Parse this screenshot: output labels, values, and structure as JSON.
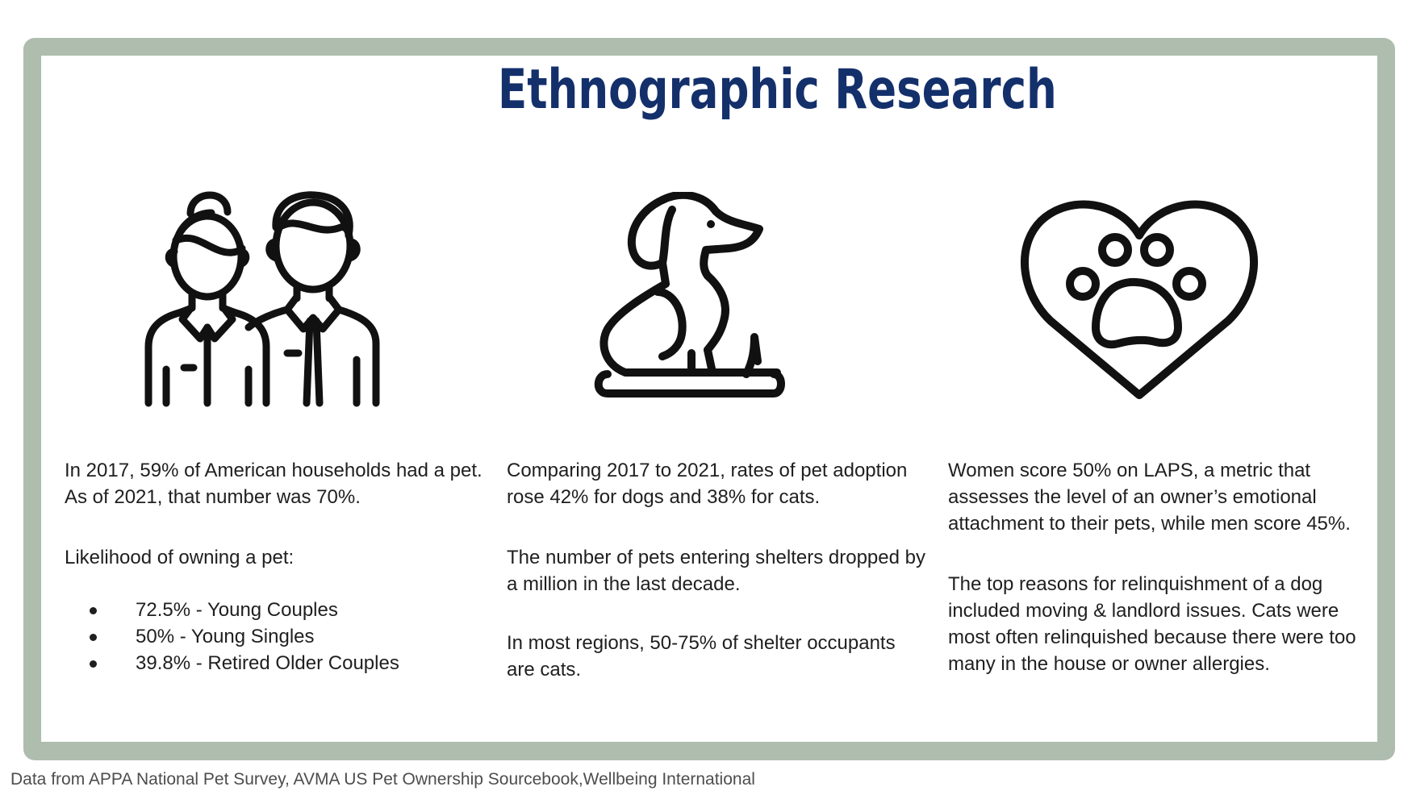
{
  "title": "Ethnographic Research",
  "icons": {
    "people": "couple-icon",
    "dog": "dog-icon",
    "heart_paw": "heart-paw-icon"
  },
  "columns": [
    {
      "intro": "In 2017, 59% of American households had a pet. As of 2021, that number was 70%.",
      "subheading": "Likelihood of owning a pet:",
      "bullets": [
        "72.5% - Young Couples",
        "50% - Young Singles",
        "39.8% - Retired Older Couples"
      ]
    },
    {
      "paragraphs": [
        "Comparing 2017 to 2021, rates of pet adoption rose 42% for dogs and 38% for cats.",
        "The number of pets entering shelters dropped by a million in the last decade.",
        "In most regions, 50-75% of shelter occupants are cats."
      ]
    },
    {
      "paragraphs": [
        "Women score 50% on LAPS, a metric that assesses the level of an owner’s emotional attachment to their pets, while men score 45%.",
        "The top reasons for relinquishment of a dog included moving & landlord issues. Cats were most often relinquished because there were too many in the house or owner allergies."
      ]
    }
  ],
  "footer": "Data from APPA National Pet Survey, AVMA US Pet Ownership Sourcebook,Wellbeing International",
  "colors": {
    "frame": "#aebdad",
    "title": "#14306b",
    "text": "#1f1f1f",
    "footer": "#4d4d4d"
  }
}
